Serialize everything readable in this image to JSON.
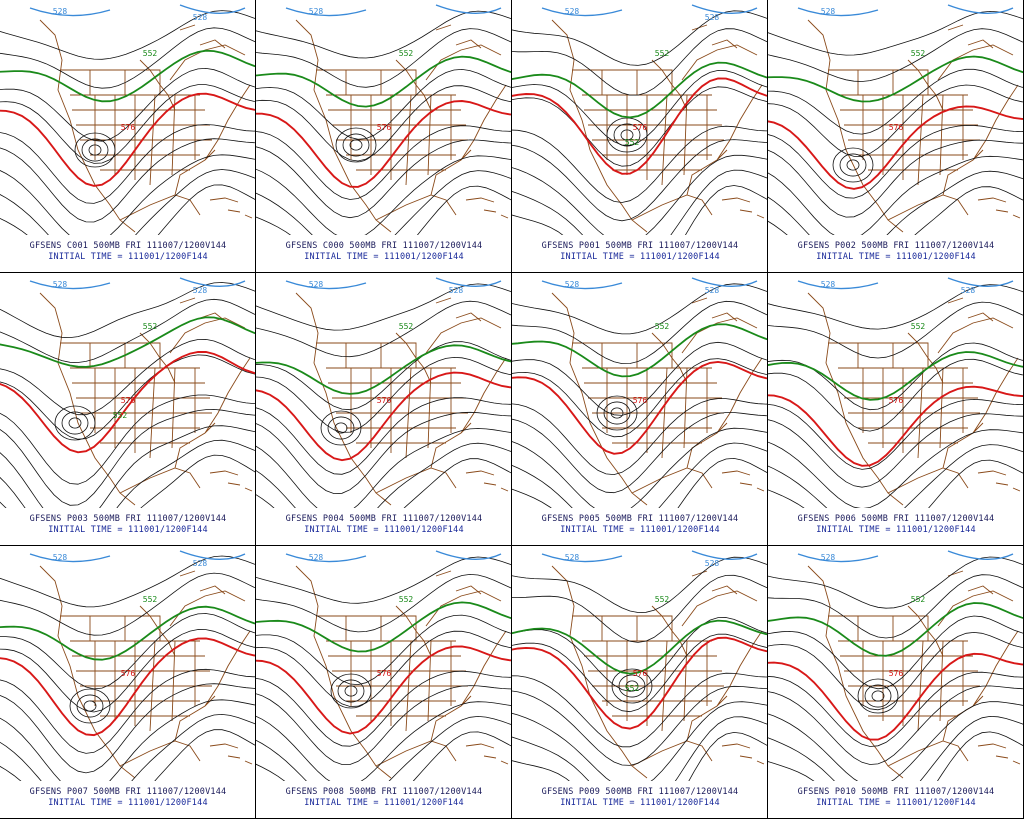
{
  "colors": {
    "contour": "#111111",
    "contour_552": "#1a8a1a",
    "contour_576": "#d81818",
    "contour_528": "#3a8ad8",
    "geography": "#8a4a1a",
    "caption_line1": "#1a1a5a",
    "caption_line2": "#1a2a9a"
  },
  "initial_time": "INITIAL TIME = 111001/1200F144",
  "panels": [
    {
      "member": "GFSENS C001 500MB FRI 111007/1200V144",
      "labels": [
        "528",
        "528",
        "552",
        "576"
      ]
    },
    {
      "member": "GFSENS C000 500MB FRI 111007/1200V144",
      "labels": [
        "528",
        "552",
        "576"
      ]
    },
    {
      "member": "GFSENS P001 500MB FRI 111007/1200V144",
      "labels": [
        "528",
        "528",
        "552",
        "552",
        "576"
      ]
    },
    {
      "member": "GFSENS P002 500MB FRI 111007/1200V144",
      "labels": [
        "528",
        "552",
        "576"
      ]
    },
    {
      "member": "GFSENS P003 500MB FRI 111007/1200V144",
      "labels": [
        "528",
        "528",
        "552",
        "552",
        "576"
      ]
    },
    {
      "member": "GFSENS P004 500MB FRI 111007/1200V144",
      "labels": [
        "528",
        "528",
        "552",
        "576"
      ]
    },
    {
      "member": "GFSENS P005 500MB FRI 111007/1200V144",
      "labels": [
        "528",
        "528",
        "552",
        "576"
      ]
    },
    {
      "member": "GFSENS P006 500MB FRI 111007/1200V144",
      "labels": [
        "528",
        "528",
        "552",
        "576"
      ]
    },
    {
      "member": "GFSENS P007 500MB FRI 111007/1200V144",
      "labels": [
        "528",
        "528",
        "552",
        "576"
      ]
    },
    {
      "member": "GFSENS P008 500MB FRI 111007/1200V144",
      "labels": [
        "528",
        "552",
        "576"
      ]
    },
    {
      "member": "GFSENS P009 500MB FRI 111007/1200V144",
      "labels": [
        "528",
        "528",
        "552",
        "552",
        "576"
      ]
    },
    {
      "member": "GFSENS P010 500MB FRI 111007/1200V144",
      "labels": [
        "528",
        "552",
        "576"
      ]
    }
  ]
}
